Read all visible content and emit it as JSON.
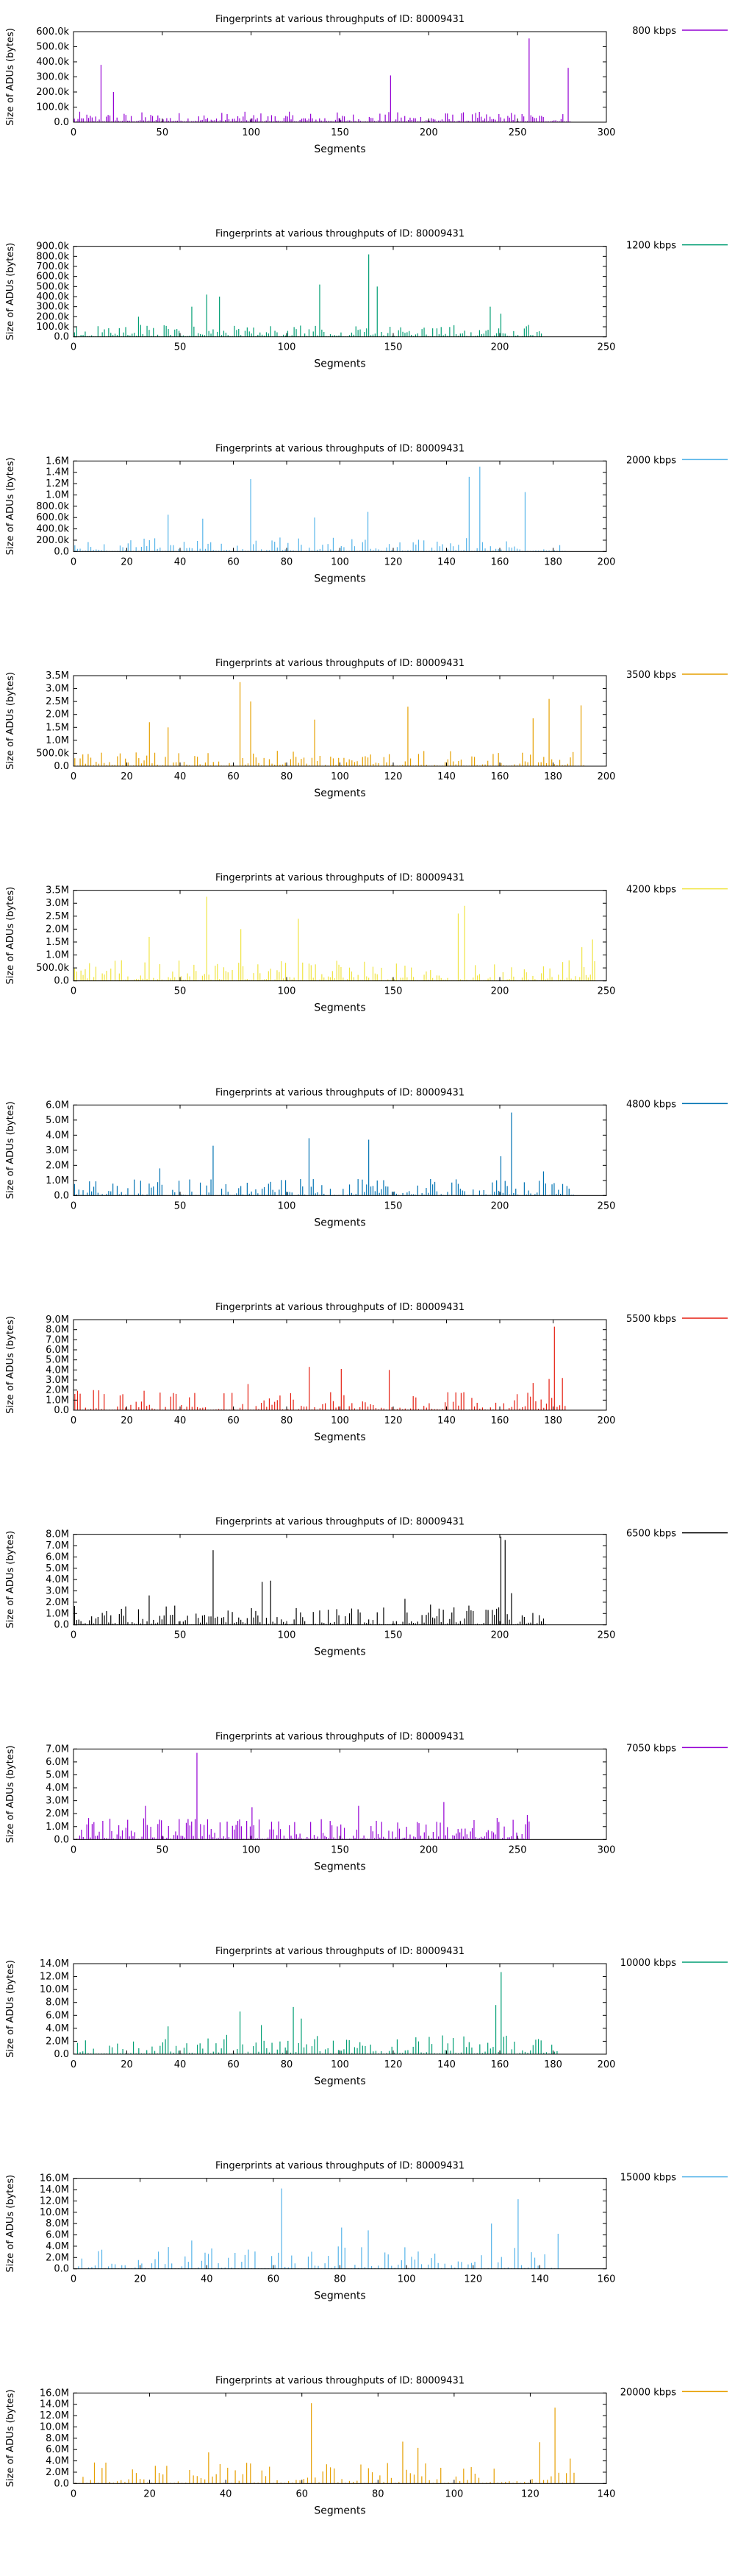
{
  "chart_data": [
    {
      "type": "bar",
      "title": "Fingerprints at various throughputs of ID: 80009431",
      "xlabel": "Segments",
      "ylabel": "Size of ADUs (bytes)",
      "series": [
        {
          "name": "800 kbps",
          "color": "#9400d3"
        }
      ],
      "xlim": [
        0,
        300
      ],
      "ylim": [
        0,
        600000
      ],
      "xticks": [
        "0",
        "50",
        "100",
        "150",
        "200",
        "250",
        "300"
      ],
      "yticks": [
        "0.0",
        "100.0k",
        "200.0k",
        "300.0k",
        "400.0k",
        "500.0k",
        "600.0k"
      ],
      "n": 280,
      "peaks": [
        [
          15,
          380000
        ],
        [
          22,
          200000
        ],
        [
          178,
          310000
        ],
        [
          256,
          555000
        ],
        [
          278,
          360000
        ]
      ],
      "base": [
        5000,
        70000
      ]
    },
    {
      "type": "bar",
      "title": "Fingerprints at various throughputs of ID: 80009431",
      "xlabel": "Segments",
      "ylabel": "Size of ADUs (bytes)",
      "series": [
        {
          "name": "1200 kbps",
          "color": "#009e73"
        }
      ],
      "xlim": [
        0,
        250
      ],
      "ylim": [
        0,
        900000
      ],
      "xticks": [
        "0",
        "50",
        "100",
        "150",
        "200",
        "250"
      ],
      "yticks": [
        "0.0",
        "100.0k",
        "200.0k",
        "300.0k",
        "400.0k",
        "500.0k",
        "600.0k",
        "700.0k",
        "800.0k",
        "900.0k"
      ],
      "n": 220,
      "peaks": [
        [
          30,
          200000
        ],
        [
          55,
          300000
        ],
        [
          62,
          420000
        ],
        [
          68,
          400000
        ],
        [
          115,
          520000
        ],
        [
          138,
          820000
        ],
        [
          142,
          500000
        ],
        [
          195,
          300000
        ],
        [
          200,
          230000
        ]
      ],
      "base": [
        5000,
        120000
      ]
    },
    {
      "type": "bar",
      "title": "Fingerprints at various throughputs of ID: 80009431",
      "xlabel": "Segments",
      "ylabel": "Size of ADUs (bytes)",
      "series": [
        {
          "name": "2000 kbps",
          "color": "#56b4e9"
        }
      ],
      "xlim": [
        0,
        200
      ],
      "ylim": [
        0,
        1600000
      ],
      "xticks": [
        "0",
        "20",
        "40",
        "60",
        "80",
        "100",
        "120",
        "140",
        "160",
        "180",
        "200"
      ],
      "yticks": [
        "0.0",
        "200.0k",
        "400.0k",
        "600.0k",
        "800.0k",
        "1.0M",
        "1.2M",
        "1.4M",
        "1.6M"
      ],
      "n": 185,
      "peaks": [
        [
          35,
          650000
        ],
        [
          48,
          580000
        ],
        [
          66,
          1280000
        ],
        [
          90,
          600000
        ],
        [
          110,
          700000
        ],
        [
          148,
          1320000
        ],
        [
          152,
          1500000
        ],
        [
          169,
          1050000
        ]
      ],
      "base": [
        10000,
        250000
      ]
    },
    {
      "type": "bar",
      "title": "Fingerprints at various throughputs of ID: 80009431",
      "xlabel": "Segments",
      "ylabel": "Size of ADUs (bytes)",
      "series": [
        {
          "name": "3500 kbps",
          "color": "#e69f00"
        }
      ],
      "xlim": [
        0,
        200
      ],
      "ylim": [
        0,
        3500000
      ],
      "xticks": [
        "0",
        "20",
        "40",
        "60",
        "80",
        "100",
        "120",
        "140",
        "160",
        "180",
        "200"
      ],
      "yticks": [
        "0.0",
        "500.0k",
        "1.0M",
        "1.5M",
        "2.0M",
        "2.5M",
        "3.0M",
        "3.5M"
      ],
      "n": 192,
      "peaks": [
        [
          28,
          1700000
        ],
        [
          35,
          1500000
        ],
        [
          62,
          3250000
        ],
        [
          66,
          2500000
        ],
        [
          90,
          1800000
        ],
        [
          125,
          2300000
        ],
        [
          172,
          1850000
        ],
        [
          178,
          2600000
        ],
        [
          190,
          2350000
        ]
      ],
      "base": [
        20000,
        600000
      ]
    },
    {
      "type": "bar",
      "title": "Fingerprints at various throughputs of ID: 80009431",
      "xlabel": "Segments",
      "ylabel": "Size of ADUs (bytes)",
      "series": [
        {
          "name": "4200 kbps",
          "color": "#f0e442"
        }
      ],
      "xlim": [
        0,
        250
      ],
      "ylim": [
        0,
        3500000
      ],
      "xticks": [
        "0",
        "50",
        "100",
        "150",
        "200",
        "250"
      ],
      "yticks": [
        "0.0",
        "500.0k",
        "1.0M",
        "1.5M",
        "2.0M",
        "2.5M",
        "3.0M",
        "3.5M"
      ],
      "n": 245,
      "peaks": [
        [
          35,
          1700000
        ],
        [
          62,
          3250000
        ],
        [
          78,
          2000000
        ],
        [
          105,
          2400000
        ],
        [
          180,
          2600000
        ],
        [
          183,
          2900000
        ],
        [
          238,
          1300000
        ],
        [
          243,
          1600000
        ]
      ],
      "base": [
        20000,
        800000
      ]
    },
    {
      "type": "bar",
      "title": "Fingerprints at various throughputs of ID: 80009431",
      "xlabel": "Segments",
      "ylabel": "Size of ADUs (bytes)",
      "series": [
        {
          "name": "4800 kbps",
          "color": "#0072b2"
        }
      ],
      "xlim": [
        0,
        250
      ],
      "ylim": [
        0,
        6000000
      ],
      "xticks": [
        "0",
        "50",
        "100",
        "150",
        "200",
        "250"
      ],
      "yticks": [
        "0.0",
        "1.0M",
        "2.0M",
        "3.0M",
        "4.0M",
        "5.0M",
        "6.0M"
      ],
      "n": 235,
      "peaks": [
        [
          40,
          1800000
        ],
        [
          65,
          3300000
        ],
        [
          110,
          3800000
        ],
        [
          138,
          3700000
        ],
        [
          200,
          2600000
        ],
        [
          205,
          5500000
        ],
        [
          220,
          1600000
        ]
      ],
      "base": [
        20000,
        1100000
      ]
    },
    {
      "type": "bar",
      "title": "Fingerprints at various throughputs of ID: 80009431",
      "xlabel": "Segments",
      "ylabel": "Size of ADUs (bytes)",
      "series": [
        {
          "name": "5500 kbps",
          "color": "#e51e10"
        }
      ],
      "xlim": [
        0,
        200
      ],
      "ylim": [
        0,
        9000000
      ],
      "xticks": [
        "0",
        "20",
        "40",
        "60",
        "80",
        "100",
        "120",
        "140",
        "160",
        "180",
        "200"
      ],
      "yticks": [
        "0.0",
        "1.0M",
        "2.0M",
        "3.0M",
        "4.0M",
        "5.0M",
        "6.0M",
        "7.0M",
        "8.0M",
        "9.0M"
      ],
      "n": 185,
      "peaks": [
        [
          65,
          2600000
        ],
        [
          88,
          4300000
        ],
        [
          100,
          4100000
        ],
        [
          118,
          4000000
        ],
        [
          172,
          2700000
        ],
        [
          178,
          3100000
        ],
        [
          180,
          8300000
        ],
        [
          183,
          3200000
        ]
      ],
      "base": [
        50000,
        2000000
      ]
    },
    {
      "type": "bar",
      "title": "Fingerprints at various throughputs of ID: 80009431",
      "xlabel": "Segments",
      "ylabel": "Size of ADUs (bytes)",
      "series": [
        {
          "name": "6500 kbps",
          "color": "#000000"
        }
      ],
      "xlim": [
        0,
        250
      ],
      "ylim": [
        0,
        8000000
      ],
      "xticks": [
        "0",
        "50",
        "100",
        "150",
        "200",
        "250"
      ],
      "yticks": [
        "0.0",
        "1.0M",
        "2.0M",
        "3.0M",
        "4.0M",
        "5.0M",
        "6.0M",
        "7.0M",
        "8.0M"
      ],
      "n": 222,
      "peaks": [
        [
          35,
          2600000
        ],
        [
          65,
          6600000
        ],
        [
          88,
          3800000
        ],
        [
          92,
          3900000
        ],
        [
          155,
          2300000
        ],
        [
          200,
          7800000
        ],
        [
          202,
          7500000
        ],
        [
          205,
          2800000
        ]
      ],
      "base": [
        50000,
        1800000
      ]
    },
    {
      "type": "bar",
      "title": "Fingerprints at various throughputs of ID: 80009431",
      "xlabel": "Segments",
      "ylabel": "Size of ADUs (bytes)",
      "series": [
        {
          "name": "7050 kbps",
          "color": "#9400d3"
        }
      ],
      "xlim": [
        0,
        300
      ],
      "ylim": [
        0,
        7000000
      ],
      "xticks": [
        "0",
        "50",
        "100",
        "150",
        "200",
        "250",
        "300"
      ],
      "yticks": [
        "0.0",
        "1.0M",
        "2.0M",
        "3.0M",
        "4.0M",
        "5.0M",
        "6.0M",
        "7.0M"
      ],
      "n": 257,
      "peaks": [
        [
          40,
          2600000
        ],
        [
          69,
          6700000
        ],
        [
          100,
          2500000
        ],
        [
          160,
          2600000
        ],
        [
          208,
          2900000
        ],
        [
          255,
          1900000
        ]
      ],
      "base": [
        50000,
        1700000
      ]
    },
    {
      "type": "bar",
      "title": "Fingerprints at various throughputs of ID: 80009431",
      "xlabel": "Segments",
      "ylabel": "Size of ADUs (bytes)",
      "series": [
        {
          "name": "10000 kbps",
          "color": "#009e73"
        }
      ],
      "xlim": [
        0,
        200
      ],
      "ylim": [
        0,
        14000000
      ],
      "xticks": [
        "0",
        "20",
        "40",
        "60",
        "80",
        "100",
        "120",
        "140",
        "160",
        "180",
        "200"
      ],
      "yticks": [
        "0.0",
        "2.0M",
        "4.0M",
        "6.0M",
        "8.0M",
        "10.0M",
        "12.0M",
        "14.0M"
      ],
      "n": 182,
      "peaks": [
        [
          35,
          4300000
        ],
        [
          62,
          6600000
        ],
        [
          70,
          4500000
        ],
        [
          82,
          7300000
        ],
        [
          85,
          5500000
        ],
        [
          158,
          7600000
        ],
        [
          160,
          12700000
        ]
      ],
      "base": [
        100000,
        3000000
      ]
    },
    {
      "type": "bar",
      "title": "Fingerprints at various throughputs of ID: 80009431",
      "xlabel": "Segments",
      "ylabel": "Size of ADUs (bytes)",
      "series": [
        {
          "name": "15000 kbps",
          "color": "#56b4e9"
        }
      ],
      "xlim": [
        0,
        160
      ],
      "ylim": [
        0,
        16000000
      ],
      "xticks": [
        "0",
        "20",
        "40",
        "60",
        "80",
        "100",
        "120",
        "140",
        "160"
      ],
      "yticks": [
        "0.0",
        "2.0M",
        "4.0M",
        "6.0M",
        "8.0M",
        "10.0M",
        "12.0M",
        "14.0M",
        "16.0M"
      ],
      "n": 146,
      "peaks": [
        [
          35,
          5000000
        ],
        [
          62,
          14200000
        ],
        [
          80,
          7300000
        ],
        [
          88,
          6800000
        ],
        [
          125,
          8000000
        ],
        [
          133,
          12300000
        ],
        [
          145,
          6200000
        ]
      ],
      "base": [
        100000,
        4000000
      ]
    },
    {
      "type": "bar",
      "title": "Fingerprints at various throughputs of ID: 80009431",
      "xlabel": "Segments",
      "ylabel": "Size of ADUs (bytes)",
      "series": [
        {
          "name": "20000 kbps",
          "color": "#e69f00"
        }
      ],
      "xlim": [
        0,
        140
      ],
      "ylim": [
        0,
        16000000
      ],
      "xticks": [
        "0",
        "20",
        "40",
        "60",
        "80",
        "100",
        "120",
        "140"
      ],
      "yticks": [
        "0.0",
        "2.0M",
        "4.0M",
        "6.0M",
        "8.0M",
        "10.0M",
        "12.0M",
        "14.0M",
        "16.0M"
      ],
      "n": 132,
      "peaks": [
        [
          35,
          5500000
        ],
        [
          62,
          14200000
        ],
        [
          86,
          7400000
        ],
        [
          90,
          6300000
        ],
        [
          122,
          7300000
        ],
        [
          126,
          13400000
        ],
        [
          130,
          4400000
        ]
      ],
      "base": [
        100000,
        3800000
      ]
    }
  ]
}
